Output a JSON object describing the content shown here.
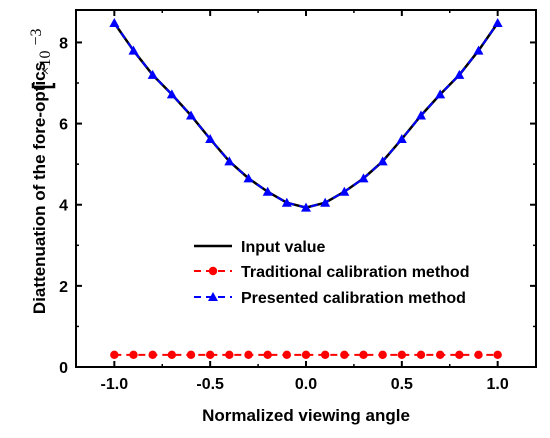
{
  "chart_data": {
    "type": "line",
    "xlabel": "Normalized viewing angle",
    "ylabel": "Diattenuation of the fore-optics",
    "y_multiplier": {
      "base": "×10",
      "exponent": "−3"
    },
    "xlim": [
      -1.2,
      1.2
    ],
    "ylim": [
      0,
      8.8
    ],
    "xticks": [
      -1.0,
      -0.5,
      0.0,
      0.5,
      1.0
    ],
    "xtick_labels": [
      "-1.0",
      "-0.5",
      "0.0",
      "0.5",
      "1.0"
    ],
    "yticks": [
      0,
      2,
      4,
      6,
      8
    ],
    "ytick_labels": [
      "0",
      "2",
      "4",
      "6",
      "8"
    ],
    "grid": false,
    "legend_position": "center-right",
    "x": [
      -1.0,
      -0.9,
      -0.8,
      -0.7,
      -0.6,
      -0.5,
      -0.4,
      -0.3,
      -0.2,
      -0.1,
      0.0,
      0.1,
      0.2,
      0.3,
      0.4,
      0.5,
      0.6,
      0.7,
      0.8,
      0.9,
      1.0
    ],
    "series": [
      {
        "name": "Input value",
        "style": "line",
        "color": "#000000",
        "values": [
          8.48,
          7.8,
          7.2,
          6.72,
          6.2,
          5.62,
          5.07,
          4.65,
          4.32,
          4.05,
          3.93,
          4.05,
          4.32,
          4.65,
          5.07,
          5.62,
          6.2,
          6.72,
          7.2,
          7.8,
          8.48
        ]
      },
      {
        "name": "Traditional calibration method",
        "style": "dashed-circle",
        "color": "#ff0000",
        "values": [
          0.3,
          0.3,
          0.3,
          0.3,
          0.3,
          0.3,
          0.3,
          0.3,
          0.3,
          0.3,
          0.3,
          0.3,
          0.3,
          0.3,
          0.3,
          0.3,
          0.3,
          0.3,
          0.3,
          0.3,
          0.3
        ]
      },
      {
        "name": "Presented calibration method",
        "style": "dashed-triangle",
        "color": "#0000ff",
        "values": [
          8.48,
          7.8,
          7.2,
          6.72,
          6.2,
          5.62,
          5.07,
          4.65,
          4.32,
          4.05,
          3.93,
          4.05,
          4.32,
          4.65,
          5.07,
          5.62,
          6.2,
          6.72,
          7.2,
          7.8,
          8.48
        ]
      }
    ]
  }
}
